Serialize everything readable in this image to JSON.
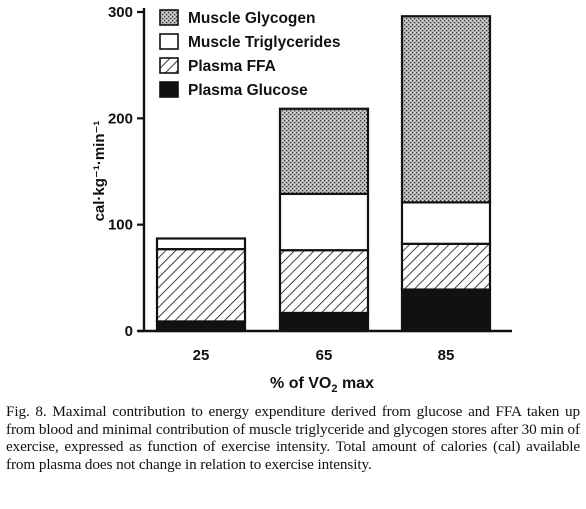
{
  "chart_data": {
    "type": "bar",
    "stacked": true,
    "categories": [
      "25",
      "65",
      "85"
    ],
    "xlabel": "% of VO₂ max",
    "ylabel": "cal·kg⁻¹·min⁻¹",
    "ylim": [
      0,
      300
    ],
    "yticks": [
      0,
      100,
      200,
      300
    ],
    "legend_position": "top-right",
    "series": [
      {
        "name": "Plasma Glucose",
        "values": [
          9,
          17,
          39
        ],
        "pattern": "solid-black"
      },
      {
        "name": "Plasma FFA",
        "values": [
          68,
          59,
          43
        ],
        "pattern": "diagonal-hatch"
      },
      {
        "name": "Muscle Triglycerides",
        "values": [
          10,
          53,
          39
        ],
        "pattern": "white"
      },
      {
        "name": "Muscle Glycogen",
        "values": [
          0,
          80,
          175
        ],
        "pattern": "stipple"
      }
    ]
  },
  "caption": "Fig. 8. Maximal contribution to energy expenditure derived from glucose and FFA taken up from blood and minimal contribution of muscle triglyceride and glycogen stores after 30 min of exercise, expressed as function of exercise intensity. Total amount of calories (cal) available from plasma does not change in relation to exercise intensity."
}
